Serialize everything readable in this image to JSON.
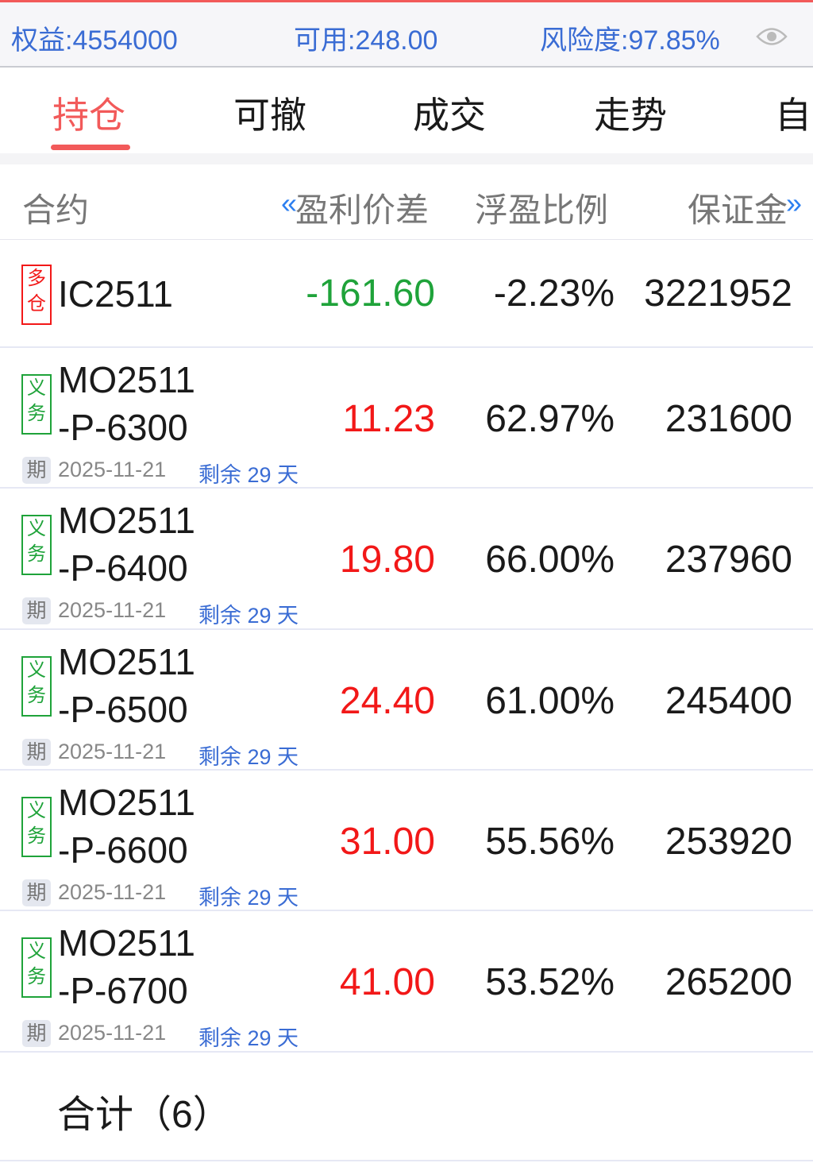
{
  "account": {
    "equity": "权益:4554000",
    "available": "可用:248.00",
    "risk": "风险度:97.85%"
  },
  "tabs": [
    "持仓",
    "可撤",
    "成交",
    "走势",
    "自"
  ],
  "columns": {
    "contract": "合约",
    "left_arrow": "«",
    "pnl_spread": "盈利价差",
    "float_ratio": "浮盈比例",
    "margin": "保证金",
    "right_arrow": "»"
  },
  "colors": {
    "accent": "#f25a5a",
    "up": "#f21818",
    "down": "#1fa33a",
    "blue": "#3a6cd4"
  },
  "rows": [
    {
      "tag": [
        "多",
        "仓"
      ],
      "tag_color": "#f21818",
      "name1": "IC2511",
      "name2": "",
      "pnl": "-161.60",
      "pnl_color": "#1fa33a",
      "ratio": "-2.23%",
      "margin": "3221952"
    },
    {
      "tag": [
        "义",
        "务"
      ],
      "tag_color": "#1fa33a",
      "name1": "MO2511",
      "name2": "-P-6300",
      "pnl": "11.23",
      "pnl_color": "#f21818",
      "ratio": "62.97%",
      "margin": "231600",
      "expiry_label": "期",
      "expiry": "2025-11-21",
      "remain": "剩余 29 天"
    },
    {
      "tag": [
        "义",
        "务"
      ],
      "tag_color": "#1fa33a",
      "name1": "MO2511",
      "name2": "-P-6400",
      "pnl": "19.80",
      "pnl_color": "#f21818",
      "ratio": "66.00%",
      "margin": "237960",
      "expiry_label": "期",
      "expiry": "2025-11-21",
      "remain": "剩余 29 天"
    },
    {
      "tag": [
        "义",
        "务"
      ],
      "tag_color": "#1fa33a",
      "name1": "MO2511",
      "name2": "-P-6500",
      "pnl": "24.40",
      "pnl_color": "#f21818",
      "ratio": "61.00%",
      "margin": "245400",
      "expiry_label": "期",
      "expiry": "2025-11-21",
      "remain": "剩余 29 天"
    },
    {
      "tag": [
        "义",
        "务"
      ],
      "tag_color": "#1fa33a",
      "name1": "MO2511",
      "name2": "-P-6600",
      "pnl": "31.00",
      "pnl_color": "#f21818",
      "ratio": "55.56%",
      "margin": "253920",
      "expiry_label": "期",
      "expiry": "2025-11-21",
      "remain": "剩余 29 天"
    },
    {
      "tag": [
        "义",
        "务"
      ],
      "tag_color": "#1fa33a",
      "name1": "MO2511",
      "name2": "-P-6700",
      "pnl": "41.00",
      "pnl_color": "#f21818",
      "ratio": "53.52%",
      "margin": "265200",
      "expiry_label": "期",
      "expiry": "2025-11-21",
      "remain": "剩余 29 天"
    }
  ],
  "total": "合计（6）"
}
